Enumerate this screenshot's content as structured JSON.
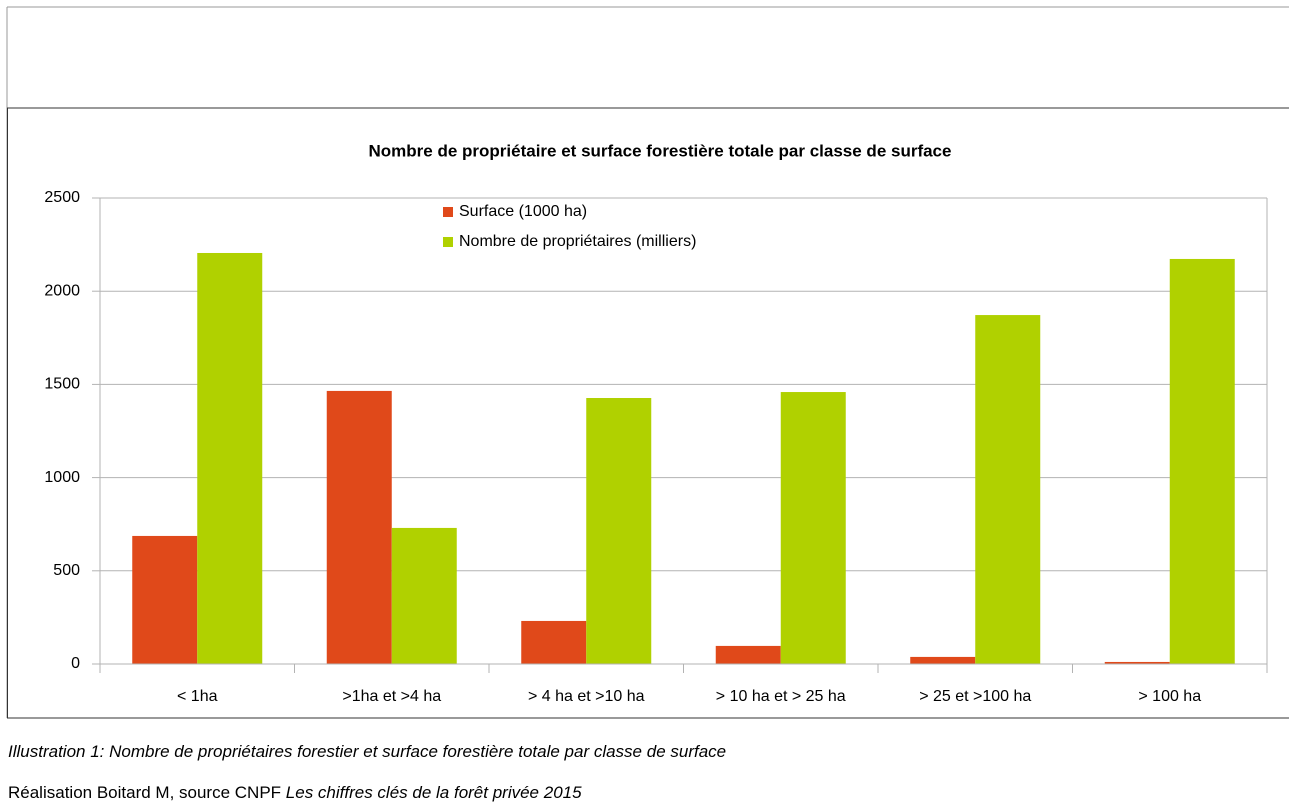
{
  "chart_data": {
    "type": "bar",
    "title": "Nombre de propriétaire et surface forestière totale par classe de surface",
    "categories": [
      "< 1ha",
      ">1ha et >4 ha",
      "> 4 ha et >10 ha",
      "> 10 ha et > 25 ha",
      "> 25 et >100 ha",
      "> 100 ha"
    ],
    "series": [
      {
        "name": "Surface (1000 ha)",
        "color": "#e0491a",
        "values": [
          687,
          1465,
          231,
          97,
          38,
          11
        ]
      },
      {
        "name": "Nombre de propriétaires (milliers)",
        "color": "#b0d100",
        "values": [
          2205,
          730,
          1427,
          1459,
          1872,
          2173
        ]
      }
    ],
    "ylim": [
      0,
      2500
    ],
    "yticks": [
      0,
      500,
      1000,
      1500,
      2000,
      2500
    ],
    "grid": true,
    "legend": "top"
  },
  "caption": "Illustration 1: Nombre de propriétaires forestier et surface forestière totale par classe de surface",
  "source_prefix": "Réalisation Boitard M, source CNPF",
  "source_title": "Les chiffres clés de la forêt privée 2015"
}
